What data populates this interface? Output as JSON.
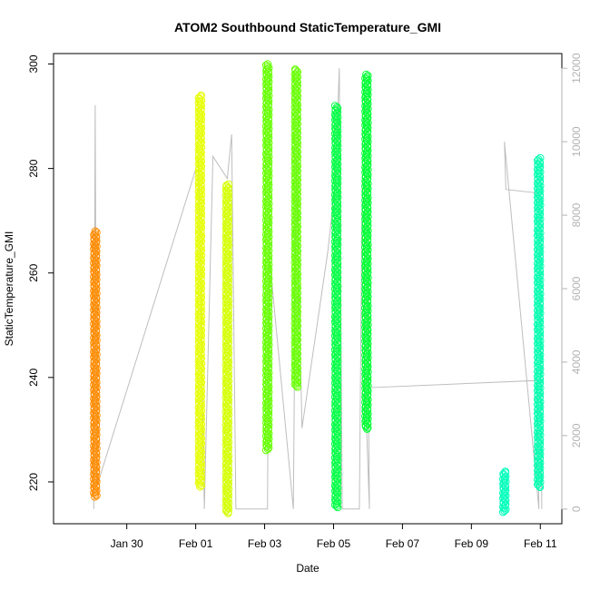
{
  "chart_data": {
    "type": "scatter",
    "title": "ATOM2 Southbound StaticTemperature_GMI",
    "xlabel": "Date",
    "ylabel": "StaticTemperature_GMI",
    "xlim": [
      "2016-01-27T21:00",
      "2016-02-11T15:00"
    ],
    "ylim": [
      212,
      302
    ],
    "y2lim": [
      -400,
      12400
    ],
    "grid": false,
    "x_ticks": [
      {
        "label": "Jan 30",
        "value": "2016-01-30"
      },
      {
        "label": "Feb 01",
        "value": "2016-02-01"
      },
      {
        "label": "Feb 03",
        "value": "2016-02-03"
      },
      {
        "label": "Feb 05",
        "value": "2016-02-05"
      },
      {
        "label": "Feb 07",
        "value": "2016-02-07"
      },
      {
        "label": "Feb 09",
        "value": "2016-02-09"
      },
      {
        "label": "Feb 11",
        "value": "2016-02-11"
      }
    ],
    "y_ticks": [
      220,
      240,
      260,
      280,
      300
    ],
    "y2_ticks": [
      0,
      2000,
      4000,
      6000,
      8000,
      10000,
      12000
    ],
    "series": [
      {
        "color": "#ff8c00",
        "x": "2016-01-29T02:00",
        "y_range": [
          217,
          268
        ]
      },
      {
        "color": "#e6ff00",
        "x": "2016-02-01T03:00",
        "y_range": [
          219,
          294
        ]
      },
      {
        "color": "#d4ff00",
        "x": "2016-02-01T22:00",
        "y_range": [
          214,
          277
        ]
      },
      {
        "color": "#66ff00",
        "x": "2016-02-03T02:00",
        "y_range": [
          226,
          300
        ]
      },
      {
        "color": "#66ff00",
        "x": "2016-02-03T22:00",
        "y_range": [
          238,
          299
        ]
      },
      {
        "color": "#00ff44",
        "x": "2016-02-05T02:00",
        "y_range": [
          215,
          292
        ]
      },
      {
        "color": "#00ff33",
        "x": "2016-02-05T23:00",
        "y_range": [
          230,
          298
        ]
      },
      {
        "color": "#00ffbb",
        "x": "2016-02-09T23:00",
        "y_range": [
          214,
          222
        ]
      },
      {
        "color": "#00ffb0",
        "x": "2016-02-10T23:00",
        "y_range": [
          219,
          282
        ]
      }
    ],
    "altitude_line": {
      "color": "#bebebe",
      "y_axis": "right",
      "points": [
        [
          "2016-01-29T01:00",
          0
        ],
        [
          "2016-01-29T02:00",
          11000
        ],
        [
          "2016-01-29T03:00",
          600
        ],
        [
          "2016-02-01T02:00",
          9500
        ],
        [
          "2016-02-01T06:00",
          0
        ],
        [
          "2016-02-01T12:00",
          9600
        ],
        [
          "2016-02-01T22:00",
          9000
        ],
        [
          "2016-02-02T01:00",
          10200
        ],
        [
          "2016-02-02T04:00",
          0
        ],
        [
          "2016-02-03T02:00",
          0
        ],
        [
          "2016-02-03T03:00",
          7000
        ],
        [
          "2016-02-03T20:00",
          0
        ],
        [
          "2016-02-03T22:00",
          9600
        ],
        [
          "2016-02-04T02:00",
          2200
        ],
        [
          "2016-02-04T20:00",
          7000
        ],
        [
          "2016-02-05T01:00",
          8800
        ],
        [
          "2016-02-05T04:00",
          12000
        ],
        [
          "2016-02-05T06:00",
          0
        ],
        [
          "2016-02-05T18:00",
          0
        ],
        [
          "2016-02-05T20:00",
          8900
        ],
        [
          "2016-02-05T23:00",
          8700
        ],
        [
          "2016-02-06T01:00",
          0
        ],
        [
          "2016-02-05T22:00",
          3300
        ],
        [
          "2016-02-10T22:00",
          3500
        ],
        [
          "2016-02-10T23:00",
          0
        ],
        [
          "2016-02-09T23:00",
          10000
        ],
        [
          "2016-02-10T00:00",
          8700
        ],
        [
          "2016-02-10T23:00",
          8600
        ],
        [
          "2016-02-11T01:00",
          0
        ]
      ]
    }
  }
}
